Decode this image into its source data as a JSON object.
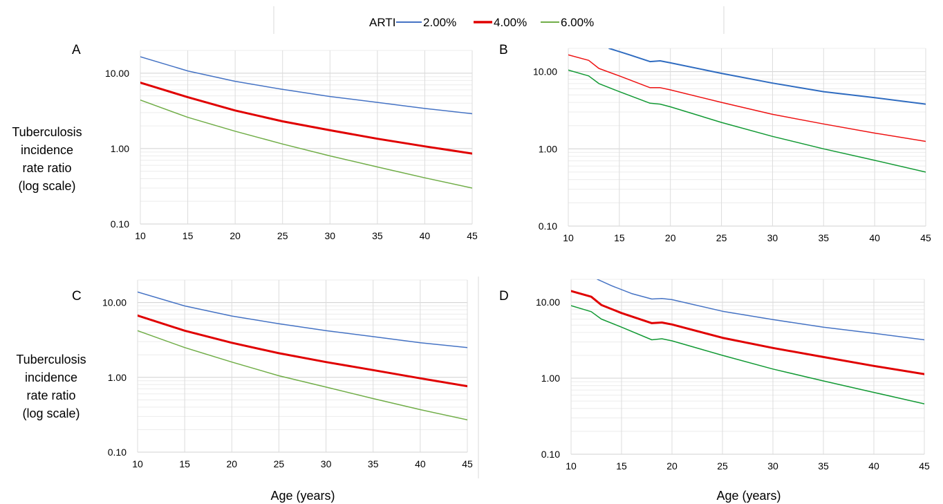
{
  "legend": {
    "title": "ARTI",
    "items": [
      {
        "label": "2.00%",
        "color": "#4472C4"
      },
      {
        "label": "4.00%",
        "color": "#E00000"
      },
      {
        "label": "6.00%",
        "color": "#70AD47"
      }
    ]
  },
  "y_axis_title_lines": [
    "Tuberculosis",
    "incidence",
    "rate ratio",
    "(log scale)"
  ],
  "x_axis_title": "Age (years)",
  "chart_data": [
    {
      "type": "line",
      "panel": "A",
      "y_scale": "log",
      "xlim": [
        10,
        45
      ],
      "ylim": [
        0.1,
        20
      ],
      "x_ticks": [
        "10",
        "15",
        "20",
        "25",
        "30",
        "35",
        "40",
        "45"
      ],
      "y_ticks": [
        "0.10",
        "1.00",
        "10.00"
      ],
      "series": [
        {
          "name": "2.00%",
          "color": "#4472C4",
          "width": 1.5,
          "x": [
            10,
            15,
            20,
            25,
            30,
            35,
            40,
            45
          ],
          "y": [
            16.5,
            10.7,
            7.8,
            6.1,
            4.9,
            4.1,
            3.4,
            2.9
          ]
        },
        {
          "name": "4.00%",
          "color": "#E00000",
          "width": 3,
          "x": [
            10,
            15,
            20,
            25,
            30,
            35,
            40,
            45
          ],
          "y": [
            7.5,
            4.8,
            3.2,
            2.3,
            1.75,
            1.35,
            1.07,
            0.86
          ]
        },
        {
          "name": "6.00%",
          "color": "#70AD47",
          "width": 1.5,
          "x": [
            10,
            15,
            20,
            25,
            30,
            35,
            40,
            45
          ],
          "y": [
            4.4,
            2.6,
            1.7,
            1.15,
            0.8,
            0.57,
            0.41,
            0.3
          ]
        }
      ]
    },
    {
      "type": "line",
      "panel": "B",
      "y_scale": "log",
      "xlim": [
        10,
        45
      ],
      "ylim": [
        0.1,
        20
      ],
      "x_ticks": [
        "10",
        "15",
        "20",
        "25",
        "30",
        "35",
        "40",
        "45"
      ],
      "y_ticks": [
        "0.10",
        "1.00",
        "10.00"
      ],
      "series": [
        {
          "name": "2.00%",
          "color": "#2E6BC0",
          "width": 2,
          "x": [
            14,
            16,
            18,
            19,
            20,
            25,
            30,
            35,
            40,
            45
          ],
          "y": [
            20,
            16.5,
            13.5,
            13.8,
            13,
            9.5,
            7.1,
            5.5,
            4.6,
            3.8
          ]
        },
        {
          "name": "4.00%",
          "color": "#EE1111",
          "width": 1.5,
          "x": [
            10,
            12,
            13,
            15,
            18,
            19,
            20,
            25,
            30,
            35,
            40,
            45
          ],
          "y": [
            16.5,
            14,
            11,
            8.8,
            6.2,
            6.2,
            5.8,
            4.0,
            2.8,
            2.1,
            1.6,
            1.25
          ]
        },
        {
          "name": "6.00%",
          "color": "#119933",
          "width": 1.5,
          "x": [
            10,
            12,
            13,
            15,
            18,
            19,
            20,
            25,
            30,
            35,
            40,
            45
          ],
          "y": [
            10.5,
            8.8,
            7,
            5.5,
            3.9,
            3.8,
            3.5,
            2.2,
            1.45,
            1.0,
            0.71,
            0.5
          ]
        }
      ]
    },
    {
      "type": "line",
      "panel": "C",
      "y_scale": "log",
      "xlim": [
        10,
        45
      ],
      "ylim": [
        0.1,
        20
      ],
      "x_ticks": [
        "10",
        "15",
        "20",
        "25",
        "30",
        "35",
        "40",
        "45"
      ],
      "y_ticks": [
        "0.10",
        "1.00",
        "10.00"
      ],
      "series": [
        {
          "name": "2.00%",
          "color": "#4472C4",
          "width": 1.5,
          "x": [
            10,
            15,
            20,
            25,
            30,
            35,
            40,
            45
          ],
          "y": [
            13.8,
            9.0,
            6.6,
            5.2,
            4.2,
            3.5,
            2.9,
            2.5
          ]
        },
        {
          "name": "4.00%",
          "color": "#E00000",
          "width": 3,
          "x": [
            10,
            15,
            20,
            25,
            30,
            35,
            40,
            45
          ],
          "y": [
            6.7,
            4.2,
            2.9,
            2.1,
            1.6,
            1.25,
            0.97,
            0.76
          ]
        },
        {
          "name": "6.00%",
          "color": "#70AD47",
          "width": 1.5,
          "x": [
            10,
            15,
            20,
            25,
            30,
            35,
            40,
            45
          ],
          "y": [
            4.2,
            2.5,
            1.6,
            1.05,
            0.74,
            0.52,
            0.37,
            0.27
          ]
        }
      ]
    },
    {
      "type": "line",
      "panel": "D",
      "y_scale": "log",
      "xlim": [
        10,
        45
      ],
      "ylim": [
        0.1,
        20
      ],
      "x_ticks": [
        "10",
        "15",
        "20",
        "25",
        "30",
        "35",
        "40",
        "45"
      ],
      "y_ticks": [
        "0.10",
        "1.00",
        "10.00"
      ],
      "series": [
        {
          "name": "2.00%",
          "color": "#4472C4",
          "width": 1.5,
          "x": [
            12.6,
            14,
            16,
            18,
            19,
            20,
            25,
            30,
            35,
            40,
            45
          ],
          "y": [
            20,
            16.5,
            13,
            11,
            11.2,
            10.8,
            7.6,
            5.9,
            4.7,
            3.9,
            3.2
          ]
        },
        {
          "name": "4.00%",
          "color": "#E00000",
          "width": 3,
          "x": [
            10,
            12,
            13,
            15,
            18,
            19,
            20,
            25,
            30,
            35,
            40,
            45
          ],
          "y": [
            14,
            11.8,
            9.2,
            7.2,
            5.3,
            5.4,
            5.1,
            3.4,
            2.5,
            1.9,
            1.45,
            1.13
          ]
        },
        {
          "name": "6.00%",
          "color": "#119933",
          "width": 1.5,
          "x": [
            10,
            12,
            13,
            15,
            18,
            19,
            20,
            25,
            30,
            35,
            40,
            45
          ],
          "y": [
            9,
            7.5,
            6.0,
            4.7,
            3.2,
            3.3,
            3.1,
            2.0,
            1.32,
            0.92,
            0.65,
            0.46
          ]
        }
      ]
    }
  ],
  "panels": [
    {
      "label": "A"
    },
    {
      "label": "B"
    },
    {
      "label": "C"
    },
    {
      "label": "D"
    }
  ]
}
